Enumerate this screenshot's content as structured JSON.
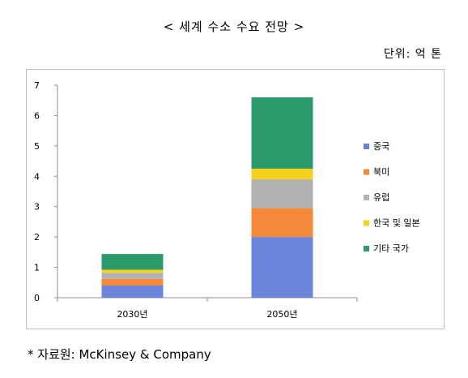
{
  "title": "< 세계 수소 수요 전망 >",
  "unit": "단위: 억 톤",
  "source": "* 자료원: McKinsey & Company",
  "chart_data": {
    "type": "bar",
    "stacked": true,
    "categories": [
      "2030년",
      "2050년"
    ],
    "ylim": [
      0,
      7
    ],
    "yticks": [
      0,
      1,
      2,
      3,
      4,
      5,
      6,
      7
    ],
    "grid": false,
    "legend_position": "right",
    "series": [
      {
        "name": "중국",
        "color": "#6a84d9",
        "values": [
          0.4,
          2.0
        ]
      },
      {
        "name": "북미",
        "color": "#f28a3a",
        "values": [
          0.22,
          0.95
        ]
      },
      {
        "name": "유럽",
        "color": "#b2b2b2",
        "values": [
          0.2,
          0.95
        ]
      },
      {
        "name": "한국 및 일본",
        "color": "#f7d21c",
        "values": [
          0.1,
          0.35
        ]
      },
      {
        "name": "기타 국가",
        "color": "#2a9a6b",
        "values": [
          0.52,
          2.35
        ]
      }
    ]
  }
}
